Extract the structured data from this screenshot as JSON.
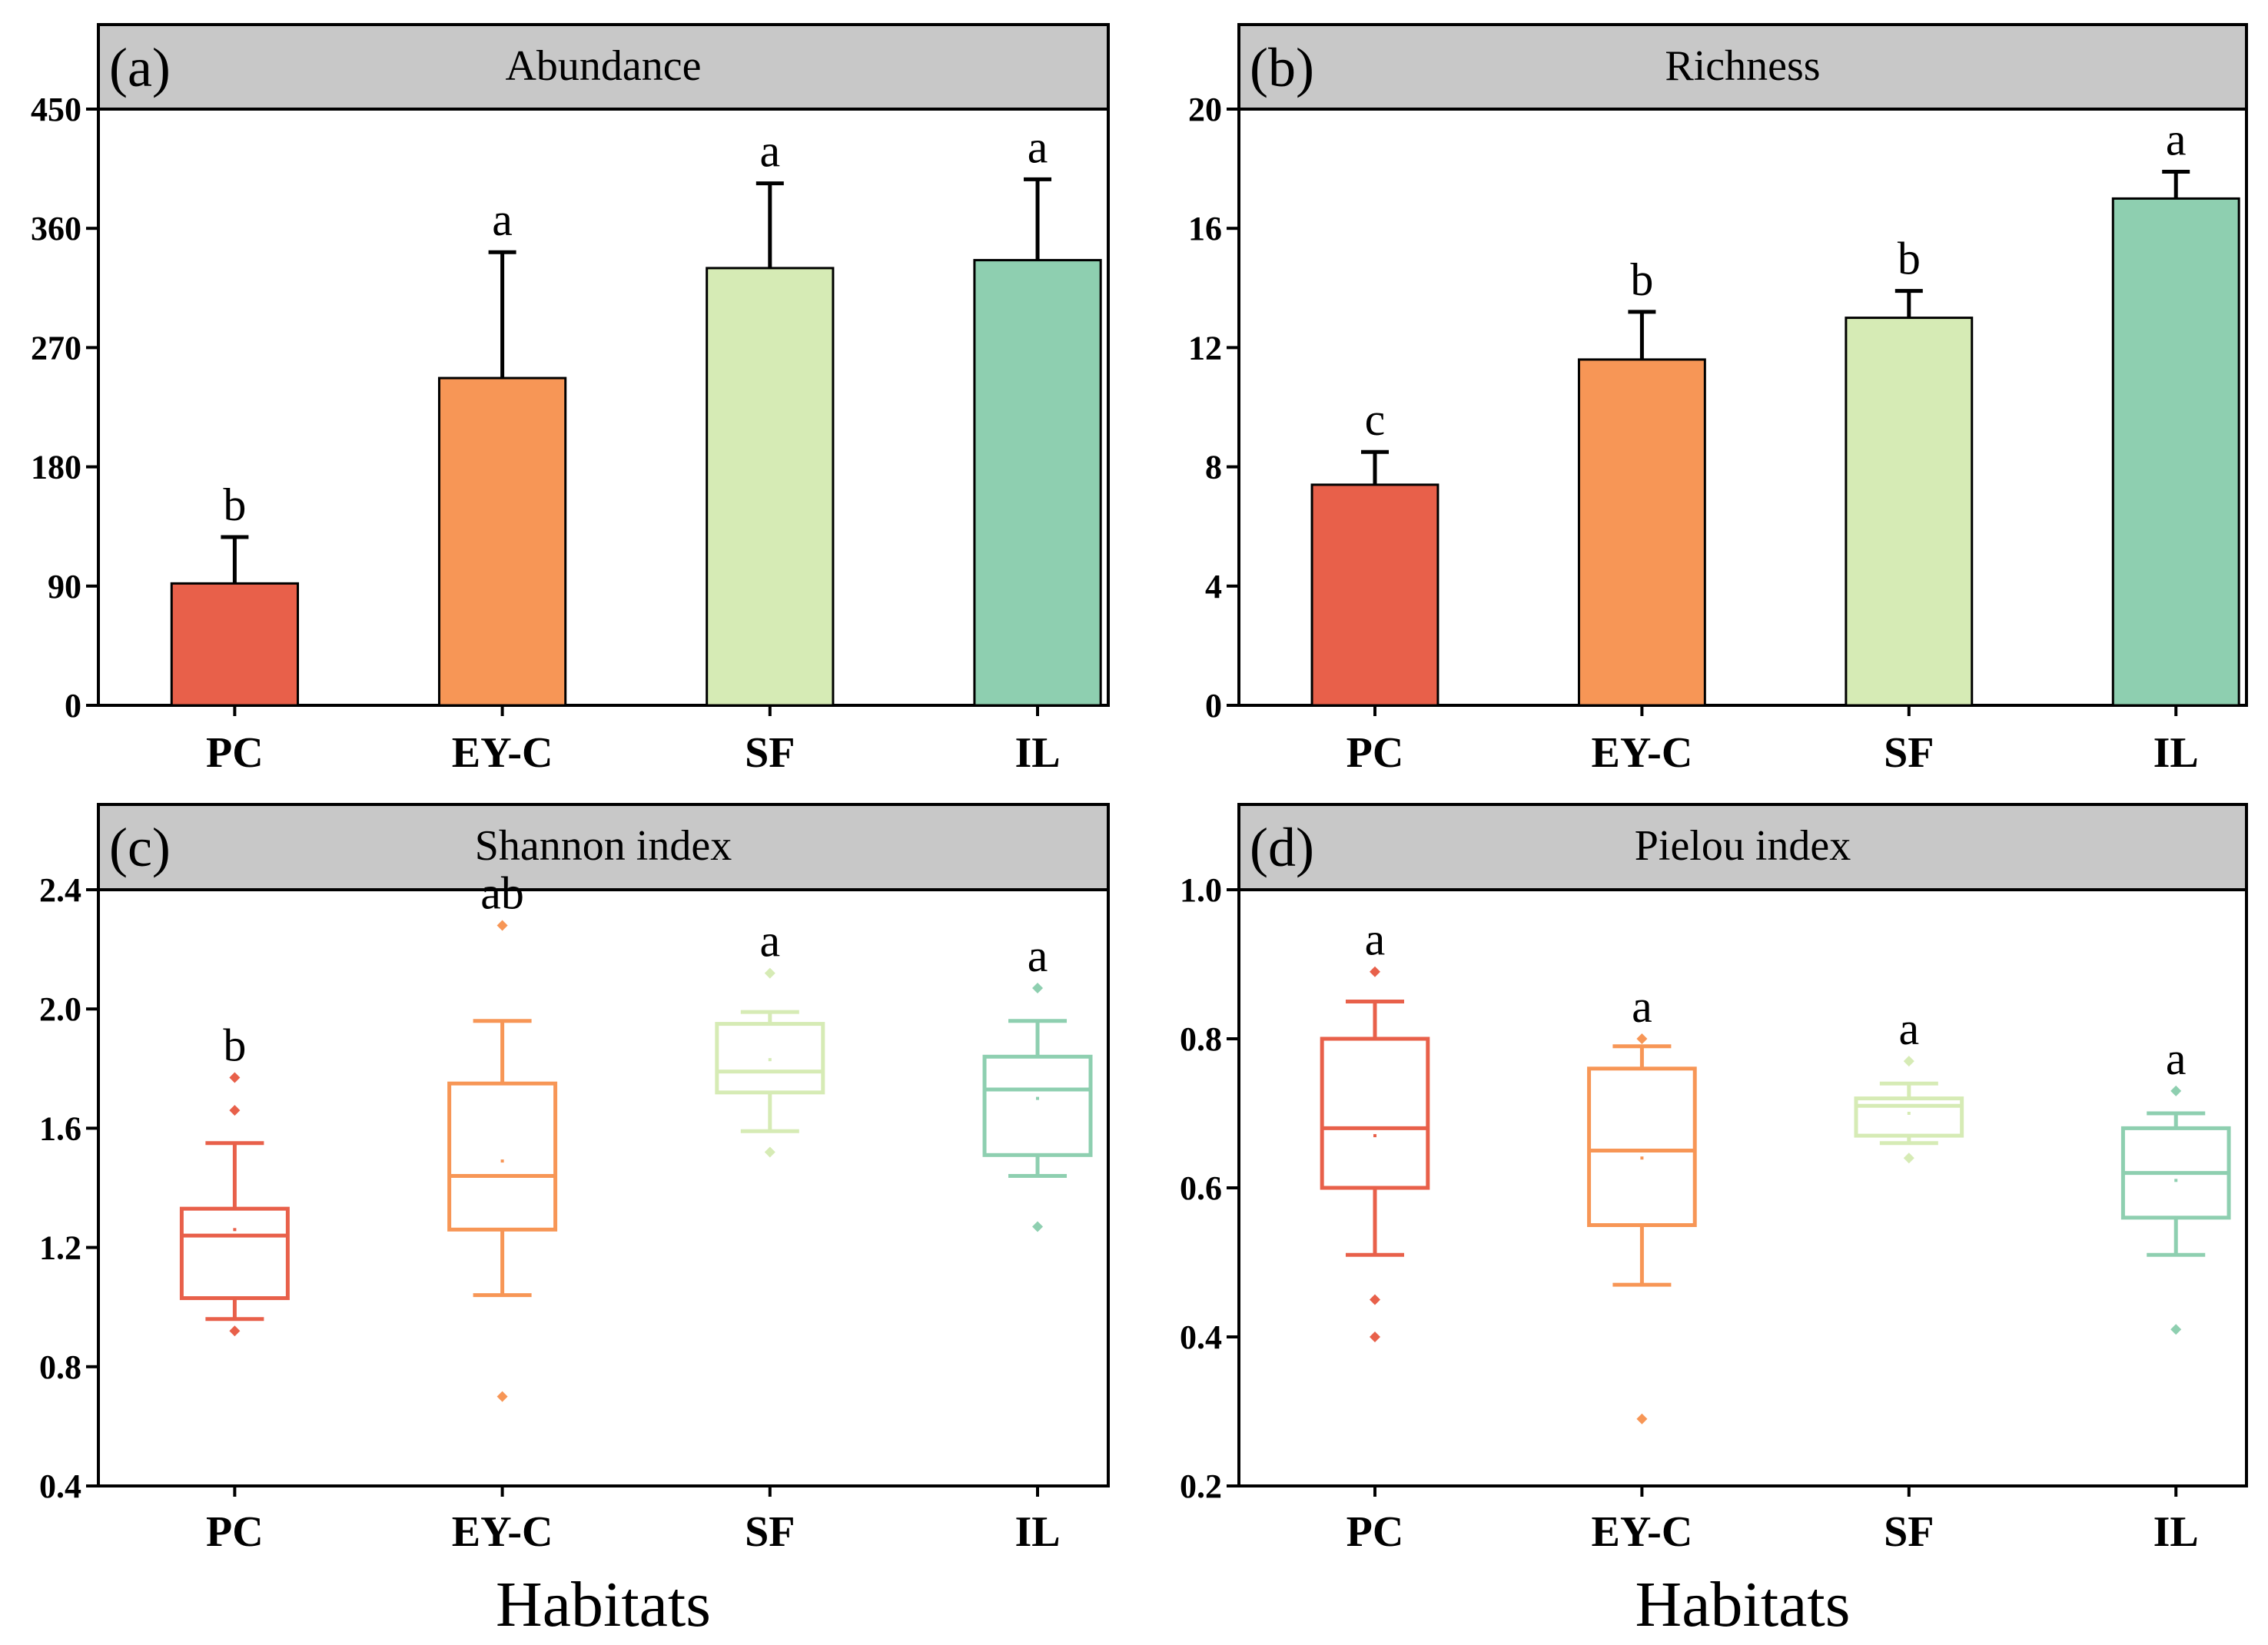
{
  "figure": {
    "x_axis_label": "Habitats"
  },
  "colors": {
    "PC": "#e8604a",
    "EY-C": "#f79656",
    "SF": "#d6ebb5",
    "IL": "#8ecfb0",
    "title_bar": "#c8c8c8"
  },
  "chart_data": [
    {
      "type": "bar",
      "panel": "(a)",
      "title": "Abundance",
      "categories": [
        "PC",
        "EY-C",
        "SF",
        "IL"
      ],
      "values": [
        92,
        247,
        330,
        336
      ],
      "error_upper": [
        127,
        342,
        394,
        397
      ],
      "letters": [
        "b",
        "a",
        "a",
        "a"
      ],
      "ylim": [
        0,
        450
      ],
      "yticks": [
        0,
        90,
        180,
        270,
        360,
        450
      ],
      "ytick_labels": [
        "0",
        "90",
        "180",
        "270",
        "360",
        "450"
      ]
    },
    {
      "type": "bar",
      "panel": "(b)",
      "title": "Richness",
      "categories": [
        "PC",
        "EY-C",
        "SF",
        "IL"
      ],
      "values": [
        7.4,
        11.6,
        13.0,
        17.0
      ],
      "error_upper": [
        8.5,
        13.2,
        13.9,
        17.9
      ],
      "letters": [
        "c",
        "b",
        "b",
        "a"
      ],
      "ylim": [
        0,
        20
      ],
      "yticks": [
        0,
        4,
        8,
        12,
        16,
        20
      ],
      "ytick_labels": [
        "0",
        "4",
        "8",
        "12",
        "16",
        "20"
      ]
    },
    {
      "type": "box",
      "panel": "(c)",
      "title": "Shannon index",
      "categories": [
        "PC",
        "EY-C",
        "SF",
        "IL"
      ],
      "boxes": [
        {
          "whisker_low": 0.96,
          "q1": 1.03,
          "median": 1.24,
          "q3": 1.33,
          "whisker_high": 1.55,
          "mean": 1.26,
          "outliers": [
            0.92,
            1.66,
            1.77
          ]
        },
        {
          "whisker_low": 1.04,
          "q1": 1.26,
          "median": 1.44,
          "q3": 1.75,
          "whisker_high": 1.96,
          "mean": 1.49,
          "outliers": [
            0.7,
            2.28
          ]
        },
        {
          "whisker_low": 1.59,
          "q1": 1.72,
          "median": 1.79,
          "q3": 1.95,
          "whisker_high": 1.99,
          "mean": 1.83,
          "outliers": [
            1.52,
            2.12
          ]
        },
        {
          "whisker_low": 1.44,
          "q1": 1.51,
          "median": 1.73,
          "q3": 1.84,
          "whisker_high": 1.96,
          "mean": 1.7,
          "outliers": [
            1.27,
            2.07
          ]
        }
      ],
      "letters": [
        "b",
        "ab",
        "a",
        "a"
      ],
      "ylim": [
        0.4,
        2.4
      ],
      "yticks": [
        0.4,
        0.8,
        1.2,
        1.6,
        2.0,
        2.4
      ],
      "ytick_labels": [
        "0.4",
        "0.8",
        "1.2",
        "1.6",
        "2.0",
        "2.4"
      ]
    },
    {
      "type": "box",
      "panel": "(d)",
      "title": "Pielou index",
      "categories": [
        "PC",
        "EY-C",
        "SF",
        "IL"
      ],
      "boxes": [
        {
          "whisker_low": 0.51,
          "q1": 0.6,
          "median": 0.68,
          "q3": 0.8,
          "whisker_high": 0.85,
          "mean": 0.67,
          "outliers": [
            0.4,
            0.45,
            0.89
          ]
        },
        {
          "whisker_low": 0.47,
          "q1": 0.55,
          "median": 0.65,
          "q3": 0.76,
          "whisker_high": 0.79,
          "mean": 0.64,
          "outliers": [
            0.29,
            0.8
          ]
        },
        {
          "whisker_low": 0.66,
          "q1": 0.67,
          "median": 0.71,
          "q3": 0.72,
          "whisker_high": 0.74,
          "mean": 0.7,
          "outliers": [
            0.64,
            0.77
          ]
        },
        {
          "whisker_low": 0.51,
          "q1": 0.56,
          "median": 0.62,
          "q3": 0.68,
          "whisker_high": 0.7,
          "mean": 0.61,
          "outliers": [
            0.41,
            0.73
          ]
        }
      ],
      "letters": [
        "a",
        "a",
        "a",
        "a"
      ],
      "ylim": [
        0.2,
        1.0
      ],
      "yticks": [
        0.2,
        0.4,
        0.6,
        0.8,
        1.0
      ],
      "ytick_labels": [
        "0.2",
        "0.4",
        "0.6",
        "0.8",
        "1.0"
      ]
    }
  ]
}
